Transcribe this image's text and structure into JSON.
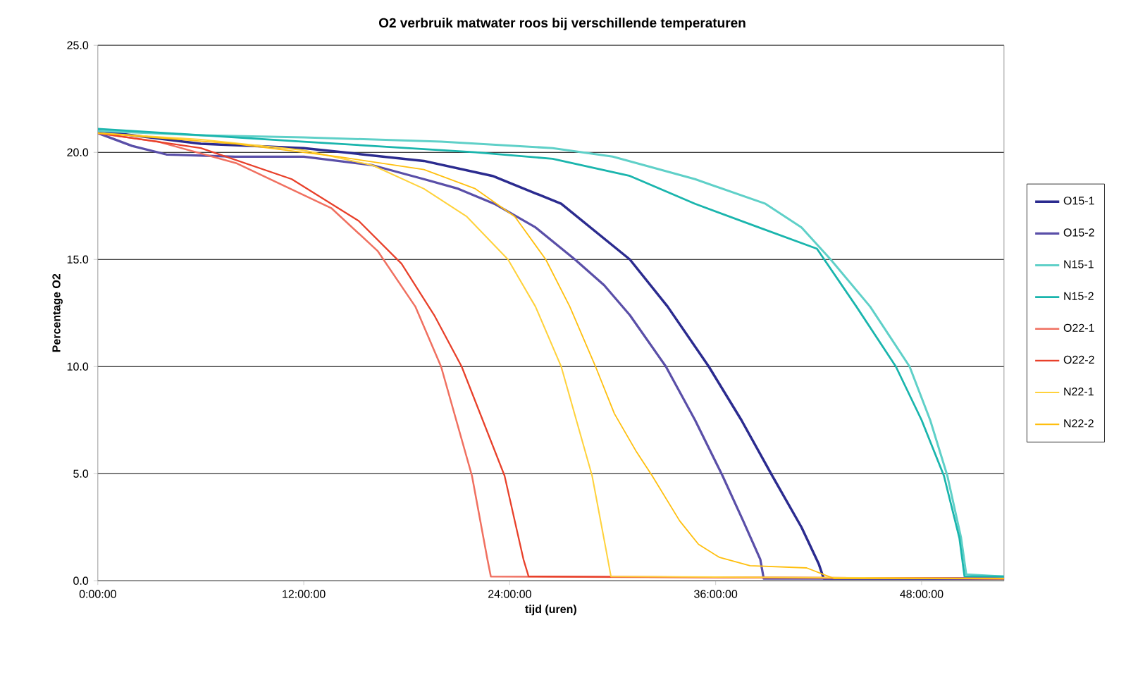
{
  "chart_data": {
    "type": "line",
    "title": "O2 verbruik matwater roos bij verschillende temperaturen",
    "xlabel": "tijd (uren)",
    "ylabel": "Percentage O2",
    "xlim": [
      0,
      52.8
    ],
    "ylim": [
      0,
      25
    ],
    "xticks": [
      {
        "value": 0,
        "label": "0:00:00"
      },
      {
        "value": 12,
        "label": "12:00:00"
      },
      {
        "value": 24,
        "label": "24:00:00"
      },
      {
        "value": 36,
        "label": "36:00:00"
      },
      {
        "value": 48,
        "label": "48:00:00"
      }
    ],
    "yticks": [
      {
        "value": 0,
        "label": "0.0"
      },
      {
        "value": 5,
        "label": "5.0"
      },
      {
        "value": 10,
        "label": "10.0"
      },
      {
        "value": 15,
        "label": "15.0"
      },
      {
        "value": 20,
        "label": "20.0"
      },
      {
        "value": 25,
        "label": "25.0"
      }
    ],
    "grid": "y",
    "legend": "right",
    "series": [
      {
        "name": "O15-1",
        "color": "#2b2b8f",
        "x": [
          0,
          6,
          12,
          19,
          23,
          27,
          31,
          33.2,
          35.6,
          37.5,
          39.3,
          41,
          42,
          42.3,
          52.8
        ],
        "values": [
          21.0,
          20.4,
          20.2,
          19.6,
          18.9,
          17.6,
          15.0,
          12.8,
          10.0,
          7.5,
          4.9,
          2.5,
          0.8,
          0.1,
          0.1
        ]
      },
      {
        "name": "O15-2",
        "color": "#5a4fa8",
        "x": [
          0,
          2,
          4,
          8,
          12,
          16,
          19,
          21,
          23.1,
          25.5,
          27.8,
          29.5,
          31,
          33.1,
          34.8,
          36.4,
          37.6,
          38.6,
          38.8,
          52.8
        ],
        "values": [
          20.9,
          20.3,
          19.9,
          19.8,
          19.8,
          19.4,
          18.75,
          18.3,
          17.6,
          16.5,
          15.0,
          13.8,
          12.4,
          10.0,
          7.5,
          4.9,
          2.8,
          1.0,
          0.1,
          0.1
        ]
      },
      {
        "name": "N15-1",
        "color": "#5fd0c8",
        "x": [
          0,
          6,
          12,
          20,
          26.5,
          30,
          34.8,
          38.9,
          41,
          42.7,
          45,
          47.3,
          48.5,
          49.5,
          50.3,
          50.6,
          52.8
        ],
        "values": [
          21.0,
          20.8,
          20.7,
          20.5,
          20.2,
          19.8,
          18.75,
          17.6,
          16.5,
          15.0,
          12.8,
          10.0,
          7.5,
          4.9,
          2.0,
          0.3,
          0.2
        ]
      },
      {
        "name": "N15-2",
        "color": "#1ab5ad",
        "x": [
          0,
          6,
          12,
          18,
          22,
          26.5,
          31,
          34.8,
          38.5,
          41.9,
          44.2,
          46.5,
          48,
          49.3,
          50.2,
          50.5,
          52.8
        ],
        "values": [
          21.1,
          20.8,
          20.5,
          20.2,
          20.0,
          19.7,
          18.9,
          17.6,
          16.5,
          15.5,
          12.8,
          10.0,
          7.5,
          4.9,
          2.0,
          0.2,
          0.2
        ]
      },
      {
        "name": "O22-1",
        "color": "#f07060",
        "x": [
          0,
          3.5,
          8.05,
          13.6,
          16.3,
          18.5,
          20,
          21.8,
          22.7,
          22.9,
          52.8
        ],
        "values": [
          20.9,
          20.5,
          19.5,
          17.4,
          15.4,
          12.8,
          10.0,
          4.9,
          1.0,
          0.2,
          0.1
        ]
      },
      {
        "name": "O22-2",
        "color": "#e8402a",
        "x": [
          0,
          6,
          11.3,
          15.2,
          17.7,
          19.6,
          21.2,
          23.7,
          24.8,
          25.1,
          52.8
        ],
        "values": [
          20.9,
          20.2,
          18.75,
          16.8,
          14.8,
          12.4,
          10.0,
          4.9,
          1.0,
          0.2,
          0.1
        ]
      },
      {
        "name": "N22-1",
        "color": "#ffd23c",
        "x": [
          0,
          6,
          12,
          16,
          19,
          21.5,
          23.9,
          25.5,
          27,
          28.8,
          29.6,
          29.9,
          52.8
        ],
        "values": [
          20.9,
          20.6,
          20.1,
          19.4,
          18.3,
          17.0,
          15.0,
          12.8,
          10.0,
          4.9,
          1.5,
          0.2,
          0.1
        ]
      },
      {
        "name": "N22-2",
        "color": "#ffbf0e",
        "x": [
          0,
          8,
          14,
          19,
          22,
          24.3,
          26.1,
          27.5,
          29,
          30.1,
          31.4,
          32.3,
          33.9,
          35,
          36.2,
          38,
          41.3,
          42.9,
          52.8
        ],
        "values": [
          20.9,
          20.4,
          19.8,
          19.2,
          18.3,
          17.0,
          15.0,
          12.8,
          10.0,
          7.8,
          6.0,
          4.9,
          2.8,
          1.7,
          1.1,
          0.7,
          0.6,
          0.1,
          0.1
        ]
      }
    ]
  }
}
